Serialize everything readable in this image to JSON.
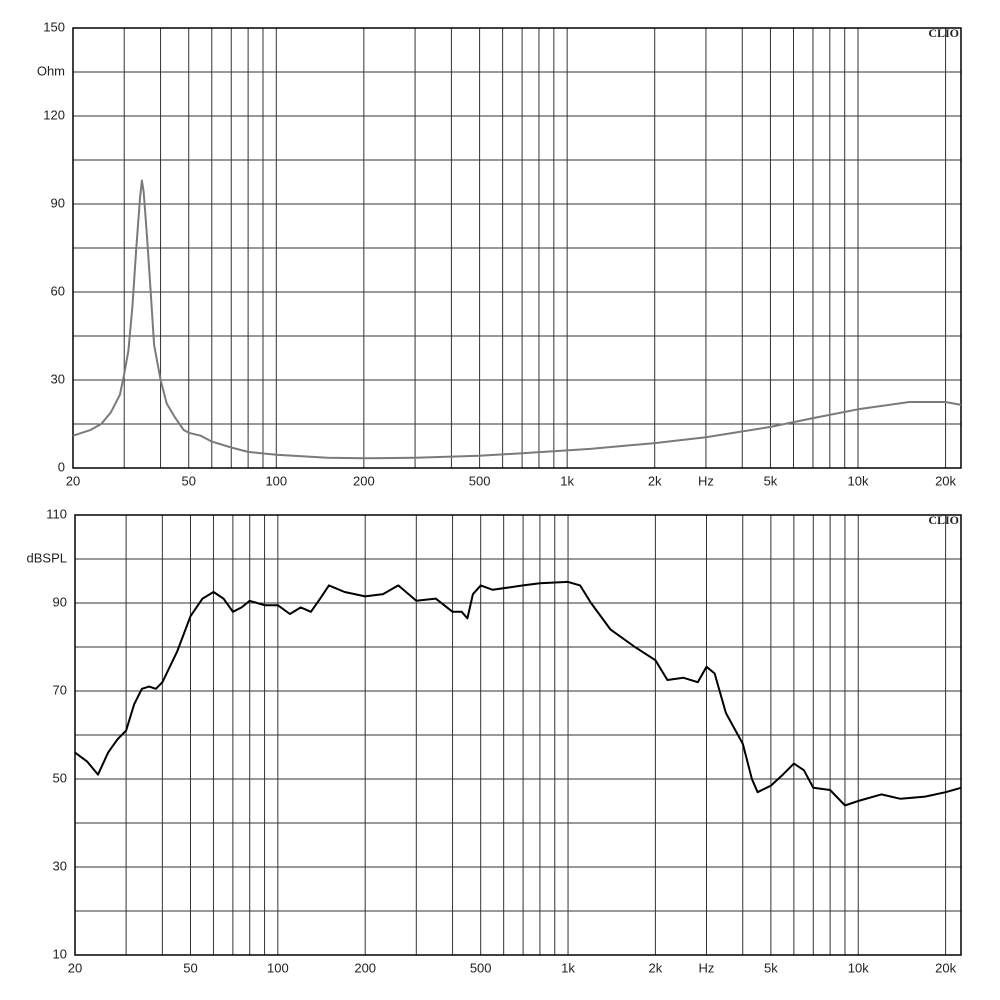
{
  "chart_data": [
    {
      "type": "line",
      "brand": "CLIO",
      "ylabel": "Ohm",
      "xscale": "log",
      "color": "#7a7a7a",
      "x": [
        20,
        23,
        25,
        27,
        29,
        30,
        31,
        32,
        33,
        34,
        34.5,
        35,
        36,
        37,
        38,
        40,
        42,
        45,
        48,
        50,
        55,
        60,
        70,
        80,
        100,
        150,
        200,
        300,
        500,
        700,
        1000,
        1200,
        2000,
        3000,
        5000,
        7000,
        10000,
        15000,
        20000,
        22600
      ],
      "values": [
        11,
        13,
        15,
        19,
        25,
        32,
        40,
        55,
        75,
        92,
        98,
        94,
        78,
        60,
        42,
        30,
        22,
        17,
        13,
        12,
        11,
        9,
        7,
        5.5,
        4.5,
        3.5,
        3.3,
        3.5,
        4.2,
        5,
        6,
        6.5,
        8.5,
        10.5,
        14,
        17,
        20,
        22.5,
        22.5,
        21.5
      ],
      "xlim": [
        20,
        22600
      ],
      "ylim": [
        0,
        150
      ],
      "xticks": [
        20,
        50,
        100,
        200,
        500,
        {
          "value": 1000,
          "label": "1k"
        },
        {
          "value": 2000,
          "label": "2k"
        },
        {
          "value": 3000,
          "label": "Hz"
        },
        {
          "value": 5000,
          "label": "5k"
        },
        {
          "value": 10000,
          "label": "10k"
        },
        {
          "value": 20000,
          "label": "20k"
        }
      ],
      "xgrid": [
        30,
        40,
        60,
        70,
        80,
        90,
        300,
        400,
        600,
        700,
        800,
        900,
        4000,
        6000,
        7000,
        8000,
        9000
      ],
      "yticks": [
        0,
        30,
        60,
        90,
        120,
        150
      ],
      "ygrid": [
        15,
        45,
        75,
        105,
        135
      ],
      "grid": true
    },
    {
      "type": "line",
      "brand": "CLIO",
      "ylabel": "dBSPL",
      "xscale": "log",
      "color": "#000000",
      "x": [
        20,
        22,
        24,
        26,
        28,
        30,
        32,
        34,
        36,
        38,
        40,
        45,
        50,
        55,
        60,
        65,
        70,
        75,
        80,
        90,
        100,
        110,
        120,
        130,
        140,
        150,
        170,
        200,
        230,
        260,
        300,
        350,
        400,
        430,
        450,
        470,
        500,
        550,
        700,
        800,
        1000,
        1100,
        1200,
        1400,
        1700,
        2000,
        2200,
        2500,
        2800,
        3000,
        3200,
        3500,
        4000,
        4300,
        4500,
        5000,
        5500,
        6000,
        6500,
        7000,
        8000,
        9000,
        10000,
        12000,
        14000,
        17000,
        20000,
        22600
      ],
      "values": [
        56,
        54,
        51,
        56,
        59,
        61,
        67,
        70.5,
        71,
        70.5,
        72,
        79,
        87,
        91,
        92.5,
        91,
        88,
        89,
        90.5,
        89.5,
        89.5,
        87.5,
        89,
        88,
        91,
        94,
        92.5,
        91.5,
        92,
        94,
        90.5,
        91,
        88,
        88,
        86.5,
        92,
        94,
        93,
        94,
        94.5,
        94.8,
        94,
        90,
        84,
        80,
        77,
        72.5,
        73,
        72,
        75.5,
        74,
        65,
        58,
        50,
        47,
        48.5,
        51,
        53.5,
        52,
        48,
        47.5,
        44,
        45,
        46.5,
        45.5,
        46,
        47,
        48
      ],
      "xlim": [
        20,
        22600
      ],
      "ylim": [
        10,
        110
      ],
      "xticks": [
        20,
        50,
        100,
        200,
        500,
        {
          "value": 1000,
          "label": "1k"
        },
        {
          "value": 2000,
          "label": "2k"
        },
        {
          "value": 3000,
          "label": "Hz"
        },
        {
          "value": 5000,
          "label": "5k"
        },
        {
          "value": 10000,
          "label": "10k"
        },
        {
          "value": 20000,
          "label": "20k"
        }
      ],
      "xgrid": [
        30,
        40,
        60,
        70,
        80,
        90,
        300,
        400,
        600,
        700,
        800,
        900,
        4000,
        6000,
        7000,
        8000,
        9000
      ],
      "yticks": [
        10,
        30,
        50,
        70,
        90,
        110
      ],
      "ygrid": [
        20,
        40,
        60,
        80,
        100
      ],
      "grid": true
    }
  ]
}
